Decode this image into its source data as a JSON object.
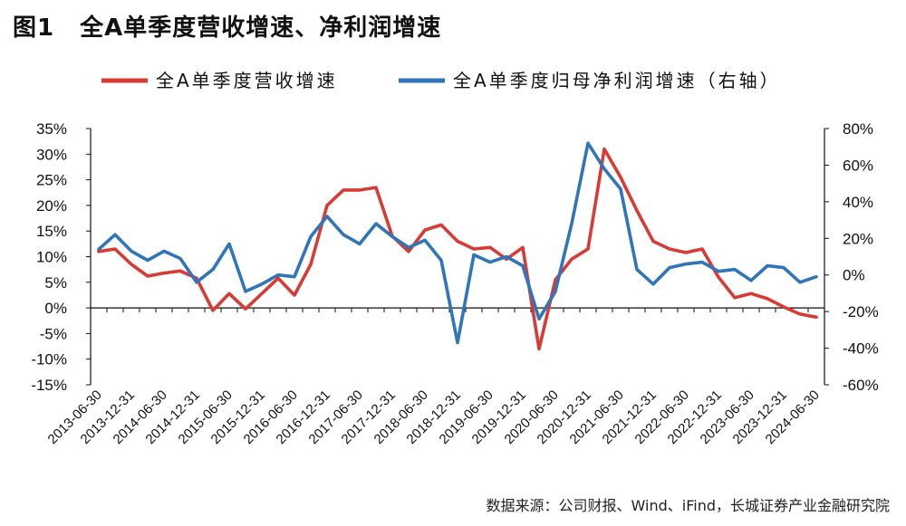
{
  "title": {
    "number": "图1",
    "text": "全A单季度营收增速、净利润增速"
  },
  "source": "数据来源：公司财报、Wind、iFind，长城证券产业金融研究院",
  "colors": {
    "revenue": "#D93A35",
    "profit": "#2F75B8",
    "axis": "#111111"
  },
  "chart_data": {
    "type": "line",
    "x": [
      "2013-06-30",
      "2013-09-30",
      "2013-12-31",
      "2014-03-31",
      "2014-06-30",
      "2014-09-30",
      "2014-12-31",
      "2015-03-31",
      "2015-06-30",
      "2015-09-30",
      "2015-12-31",
      "2016-03-31",
      "2016-06-30",
      "2016-09-30",
      "2016-12-31",
      "2017-03-31",
      "2017-06-30",
      "2017-09-30",
      "2017-12-31",
      "2018-03-31",
      "2018-06-30",
      "2018-09-30",
      "2018-12-31",
      "2019-03-31",
      "2019-06-30",
      "2019-09-30",
      "2019-12-31",
      "2020-03-31",
      "2020-06-30",
      "2020-09-30",
      "2020-12-31",
      "2021-03-31",
      "2021-06-30",
      "2021-09-30",
      "2021-12-31",
      "2022-03-31",
      "2022-06-30",
      "2022-09-30",
      "2022-12-31",
      "2023-03-31",
      "2023-06-30",
      "2023-09-30",
      "2023-12-31",
      "2024-03-31",
      "2024-06-30"
    ],
    "x_tick_labels": [
      "2013-06-30",
      "2013-12-31",
      "2014-06-30",
      "2014-12-31",
      "2015-06-30",
      "2015-12-31",
      "2016-06-30",
      "2016-12-31",
      "2017-06-30",
      "2017-12-31",
      "2018-06-30",
      "2018-12-31",
      "2019-06-30",
      "2019-12-31",
      "2020-06-30",
      "2020-12-31",
      "2021-06-30",
      "2021-12-31",
      "2022-06-30",
      "2022-12-31",
      "2023-06-30",
      "2023-12-31",
      "2024-06-30"
    ],
    "series": [
      {
        "name": "全A单季度营收增速",
        "axis": "left",
        "values": [
          11.0,
          11.5,
          8.5,
          6.2,
          6.8,
          7.2,
          5.8,
          -0.5,
          2.8,
          -0.2,
          2.8,
          5.8,
          2.5,
          8.5,
          20.0,
          23.0,
          23.0,
          23.5,
          14.0,
          11.0,
          15.2,
          16.2,
          13.0,
          11.5,
          11.8,
          9.5,
          11.8,
          -8.0,
          5.5,
          9.5,
          11.5,
          31.0,
          25.5,
          19.0,
          13.0,
          11.5,
          10.8,
          11.5,
          6.0,
          2.0,
          2.8,
          1.8,
          0.2,
          -1.2,
          -1.8
        ]
      },
      {
        "name": "全A单季度归母净利润增速（右轴）",
        "axis": "right",
        "values": [
          14.0,
          22.0,
          13.0,
          8.0,
          13.0,
          9.0,
          -4.0,
          3.0,
          17.0,
          -9.0,
          -5.0,
          0.0,
          -1.0,
          21.0,
          32.0,
          22.0,
          17.0,
          28.0,
          21.0,
          15.0,
          19.0,
          8.0,
          -37.0,
          11.0,
          7.0,
          10.0,
          5.0,
          -24.0,
          -9.0,
          28.0,
          72.0,
          58.0,
          47.0,
          3.0,
          -5.0,
          4.0,
          6.0,
          7.0,
          2.0,
          3.0,
          -3.0,
          5.0,
          4.0,
          -4.0,
          -1.0
        ]
      }
    ],
    "y_left": {
      "min": -15,
      "max": 35,
      "step": 5,
      "tick_labels": [
        "35%",
        "30%",
        "25%",
        "20%",
        "15%",
        "10%",
        "5%",
        "0%",
        "-5%",
        "-10%",
        "-15%"
      ]
    },
    "y_right": {
      "min": -60,
      "max": 80,
      "step": 20,
      "tick_labels": [
        "80%",
        "60%",
        "40%",
        "20%",
        "0%",
        "-20%",
        "-40%",
        "-60%"
      ]
    },
    "legend_position": "top",
    "grid": false
  }
}
